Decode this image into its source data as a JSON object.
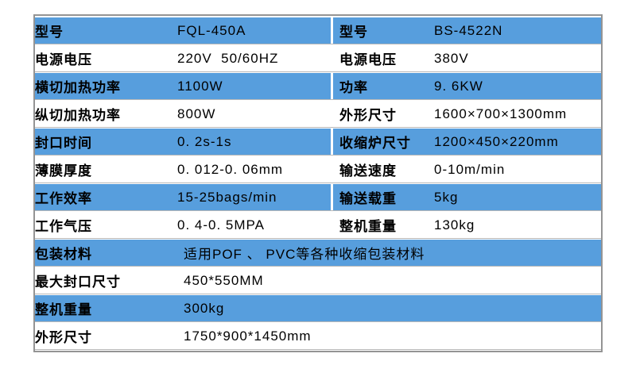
{
  "colors": {
    "row_blue": "#579EDD",
    "row_white": "#ffffff",
    "outer_border": "#949494",
    "text": "#000000",
    "divider": "#ffffff"
  },
  "spec_table": {
    "description": "machine specification comparison table",
    "rows": [
      {
        "cells": [
          "型号",
          "FQL-450A",
          "型号",
          "BS-4522N"
        ]
      },
      {
        "cells": [
          "电源电压",
          "220V  50/60HZ",
          "电源电压",
          "380V"
        ]
      },
      {
        "cells": [
          "横切加热功率",
          "1100W",
          "功率",
          "9. 6KW"
        ]
      },
      {
        "cells": [
          "纵切加热功率",
          "800W",
          "外形尺寸",
          "1600×700×1300mm"
        ]
      },
      {
        "cells": [
          "封口时间",
          "0. 2s-1s",
          "收缩炉尺寸",
          "1200×450×220mm"
        ]
      },
      {
        "cells": [
          "薄膜厚度",
          "0. 012-0. 06mm",
          "输送速度",
          "0-10m/min"
        ]
      },
      {
        "cells": [
          "工作效率",
          "15-25bags/min",
          "输送载重",
          "5kg"
        ]
      },
      {
        "cells": [
          "工作气压",
          "0. 4-0. 5MPA",
          "整机重量",
          "130kg"
        ]
      },
      {
        "cells": [
          "包装材料",
          "适用POF 、 PVC等各种收缩包装材料"
        ]
      },
      {
        "cells": [
          "最大封口尺寸",
          "450*550MM"
        ]
      },
      {
        "cells": [
          "整机重量",
          "300kg"
        ]
      },
      {
        "cells": [
          "外形尺寸",
          "1750*900*1450mm"
        ]
      }
    ]
  }
}
